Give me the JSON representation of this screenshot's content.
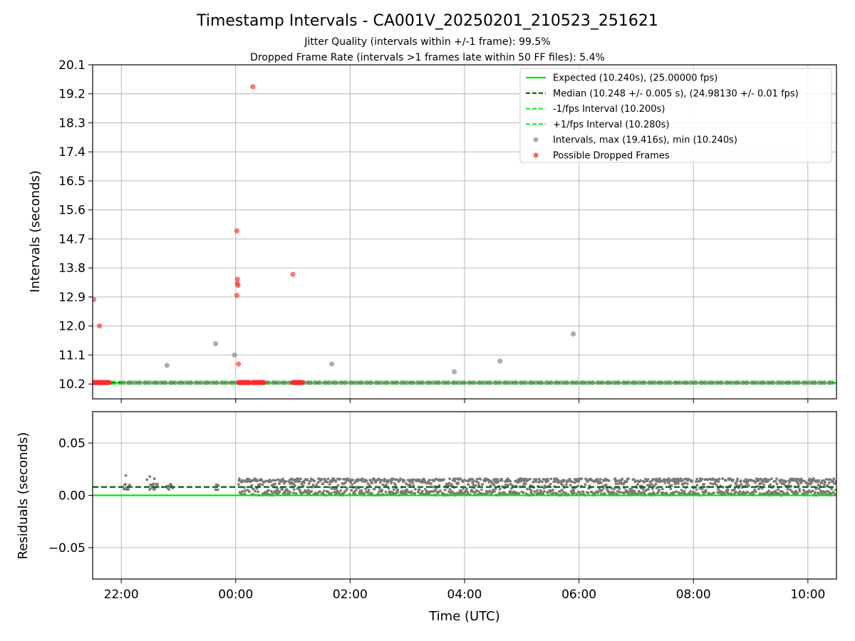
{
  "figure": {
    "title": "Timestamp Intervals - CA001V_20250201_210523_251621",
    "subtitle_1": "Jitter Quality (intervals within +/-1 frame): 99.5%",
    "subtitle_2": "Dropped Frame Rate (intervals >1 frames late within 50 FF files): 5.4%"
  },
  "chart_data": [
    {
      "type": "scatter",
      "panel": "intervals",
      "ylabel": "Intervals (seconds)",
      "xlabel": "",
      "x_unit": "hours (UTC) relative to 00:00 on 2025-02-01/02",
      "xlim": [
        -2.5,
        10.5
      ],
      "ylim": [
        9.74,
        20.1
      ],
      "yticks": [
        10.2,
        11.1,
        12.0,
        12.9,
        13.8,
        14.7,
        15.6,
        16.5,
        17.4,
        18.3,
        19.2,
        20.1
      ],
      "ytick_labels": [
        "10.2",
        "11.1",
        "12.0",
        "12.9",
        "13.8",
        "14.7",
        "15.6",
        "16.5",
        "17.4",
        "18.3",
        "19.2",
        "20.1"
      ],
      "xticks": [
        -2,
        0,
        2,
        4,
        6,
        8,
        10
      ],
      "grid": true,
      "legend_position": "top-right",
      "series": [
        {
          "name": "Expected (10.240s), (25.00000 fps)",
          "kind": "hline",
          "value": 10.24,
          "color": "#00e600",
          "style": "solid"
        },
        {
          "name": "Median (10.248 +/- 0.005 s), (24.98130 +/- 0.01 fps)",
          "kind": "hline",
          "value": 10.248,
          "color": "#006400",
          "style": "dashed"
        },
        {
          "name": "-1/fps Interval (10.200s)",
          "kind": "hline",
          "value": 10.2,
          "color": "#22ee22",
          "style": "dashed"
        },
        {
          "name": "+1/fps Interval (10.280s)",
          "kind": "hline",
          "value": 10.28,
          "color": "#22ee22",
          "style": "dashed"
        },
        {
          "name": "Intervals, max (19.416s), min (10.240s)",
          "kind": "scatter",
          "color": "#8c8c8c",
          "regular_range": [
            -1.95,
            10.45
          ],
          "regular_value": 10.245,
          "points": [
            [
              -1.2,
              10.78
            ],
            [
              -0.35,
              11.45
            ],
            [
              -0.02,
              11.1
            ],
            [
              1.68,
              10.82
            ],
            [
              3.82,
              10.58
            ],
            [
              4.62,
              10.91
            ],
            [
              5.9,
              11.75
            ]
          ]
        },
        {
          "name": "Possible Dropped Frames",
          "kind": "scatter",
          "color": "#ff2a2a",
          "clusters": [
            [
              -2.5,
              -2.2
            ],
            [
              0.05,
              0.25
            ],
            [
              0.3,
              0.5
            ],
            [
              1.0,
              1.18
            ]
          ],
          "cluster_value": 10.245,
          "points": [
            [
              -2.48,
              12.82
            ],
            [
              -2.38,
              12.0
            ],
            [
              0.02,
              14.95
            ],
            [
              0.03,
              13.45
            ],
            [
              0.03,
              13.32
            ],
            [
              0.04,
              13.26
            ],
            [
              0.02,
              12.95
            ],
            [
              0.05,
              10.82
            ],
            [
              0.3,
              19.42
            ],
            [
              1.0,
              13.6
            ]
          ]
        }
      ]
    },
    {
      "type": "scatter",
      "panel": "residuals",
      "ylabel": "Residuals (seconds)",
      "xlabel": "Time (UTC)",
      "xlim": [
        -2.5,
        10.5
      ],
      "ylim": [
        -0.08,
        0.08
      ],
      "yticks": [
        -0.05,
        0.0,
        0.05
      ],
      "ytick_labels": [
        "−0.05",
        "0.00",
        "0.05"
      ],
      "xticks": [
        -2,
        0,
        2,
        4,
        6,
        8,
        10
      ],
      "xtick_labels": [
        "22:00",
        "00:00",
        "02:00",
        "04:00",
        "06:00",
        "08:00",
        "10:00"
      ],
      "grid": true,
      "series": [
        {
          "name": "Expected",
          "kind": "hline",
          "value": 0.0,
          "color": "#00e600",
          "style": "solid"
        },
        {
          "name": "Median",
          "kind": "hline",
          "value": 0.008,
          "color": "#006400",
          "style": "dashed"
        },
        {
          "name": "Residuals",
          "kind": "scatter",
          "color": "#7a7a7a",
          "sparse_clusters": [
            [
              -1.95,
              -1.85
            ],
            [
              -1.5,
              -1.35
            ],
            [
              -1.2,
              -1.1
            ],
            [
              -0.35,
              -0.3
            ]
          ],
          "sparse_value": 0.008,
          "dense_range": [
            0.05,
            10.5
          ],
          "dense_values": [
            0.0,
            0.016
          ],
          "outliers": [
            [
              -1.92,
              0.019
            ],
            [
              -1.5,
              0.018
            ],
            [
              -1.42,
              0.016
            ],
            [
              -1.55,
              0.015
            ]
          ]
        }
      ]
    }
  ]
}
